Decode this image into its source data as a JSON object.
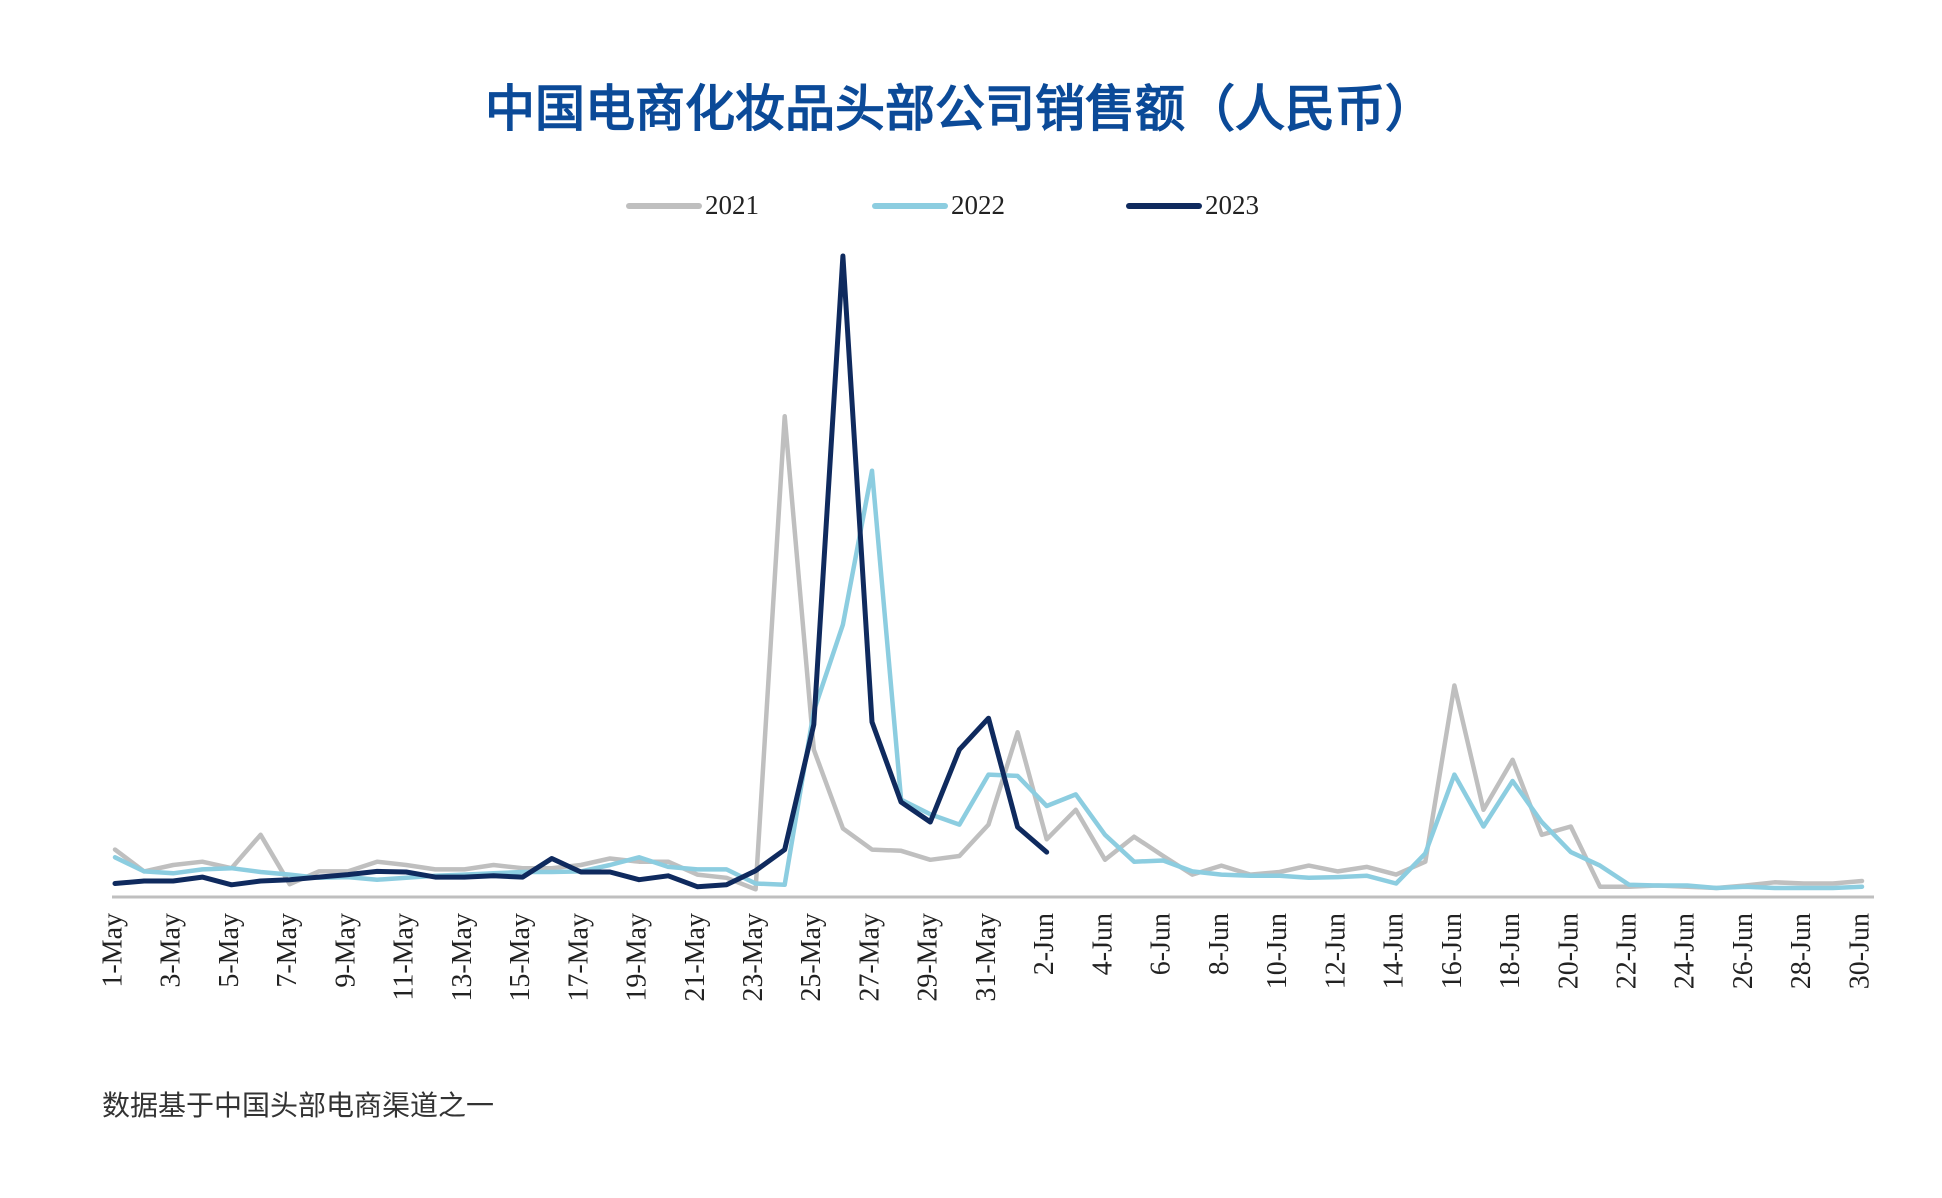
{
  "chart_data": {
    "type": "line",
    "title": "中国电商化妆品头部公司销售额（人民币）",
    "note": "数据基于中国头部电商渠道之一",
    "categories": [
      "1-May",
      null,
      "3-May",
      null,
      "5-May",
      null,
      "7-May",
      null,
      "9-May",
      null,
      "11-May",
      null,
      "13-May",
      null,
      "15-May",
      null,
      "17-May",
      null,
      "19-May",
      null,
      "21-May",
      null,
      "23-May",
      null,
      "25-May",
      null,
      "27-May",
      null,
      "29-May",
      null,
      "31-May",
      null,
      "2-Jun",
      null,
      "4-Jun",
      null,
      "6-Jun",
      null,
      "8-Jun",
      null,
      "10-Jun",
      null,
      "12-Jun",
      null,
      "14-Jun",
      null,
      "16-Jun",
      null,
      "18-Jun",
      null,
      "20-Jun",
      null,
      "22-Jun",
      null,
      "24-Jun",
      null,
      "26-Jun",
      null,
      "28-Jun",
      null,
      "30-Jun"
    ],
    "series": [
      {
        "name": "2021",
        "color": "#bfbfbf",
        "values": [
          7.4,
          4,
          5,
          5.5,
          4.5,
          9.7,
          2,
          4,
          4,
          5.5,
          5,
          4.3,
          4.3,
          5,
          4.5,
          4.5,
          5,
          6,
          5.5,
          5.5,
          3.5,
          3,
          1.2,
          75,
          23,
          10.7,
          7.4,
          7.2,
          5.8,
          6.4,
          11.3,
          25.7,
          9,
          13.6,
          5.8,
          9.4,
          6.4,
          3.5,
          4.9,
          3.5,
          3.9,
          4.9,
          4,
          4.7,
          3.5,
          5.5,
          33,
          13.6,
          21.4,
          9.7,
          11,
          1.6,
          1.6,
          1.8,
          1.6,
          1.4,
          1.8,
          2.3,
          2.1,
          2.1,
          2.5
        ]
      },
      {
        "name": "2022",
        "color": "#8ccde0",
        "values": [
          6.2,
          4,
          3.7,
          4.3,
          4.5,
          3.9,
          3.5,
          3,
          3.1,
          2.7,
          3,
          3.3,
          3.5,
          3.7,
          3.9,
          3.9,
          4,
          5,
          6.2,
          4.7,
          4.3,
          4.3,
          2.1,
          1.9,
          29,
          42.5,
          66.5,
          15.2,
          12.9,
          11.3,
          19.1,
          18.9,
          14.2,
          16,
          9.7,
          5.5,
          5.7,
          4,
          3.5,
          3.3,
          3.3,
          3,
          3.1,
          3.3,
          2.1,
          6.8,
          19.1,
          11,
          18.1,
          11.7,
          7,
          4.9,
          1.9,
          1.8,
          1.8,
          1.4,
          1.6,
          1.4,
          1.4,
          1.4,
          1.6
        ]
      },
      {
        "name": "2023",
        "color": "#0f2a5e",
        "values": [
          2.1,
          2.5,
          2.5,
          3.1,
          1.9,
          2.5,
          2.7,
          3.1,
          3.5,
          4,
          3.9,
          3.1,
          3.1,
          3.3,
          3.1,
          6,
          3.9,
          3.9,
          2.7,
          3.3,
          1.6,
          1.9,
          4.1,
          7.4,
          26.9,
          100,
          27.3,
          14.8,
          11.7,
          23,
          27.9,
          10.9,
          7,
          null,
          null,
          null,
          null,
          null,
          null,
          null,
          null,
          null,
          null,
          null,
          null,
          null,
          null,
          null,
          null,
          null,
          null,
          null,
          null,
          null,
          null,
          null,
          null,
          null,
          null,
          null,
          null
        ]
      }
    ],
    "ylim": [
      0,
      100
    ]
  }
}
